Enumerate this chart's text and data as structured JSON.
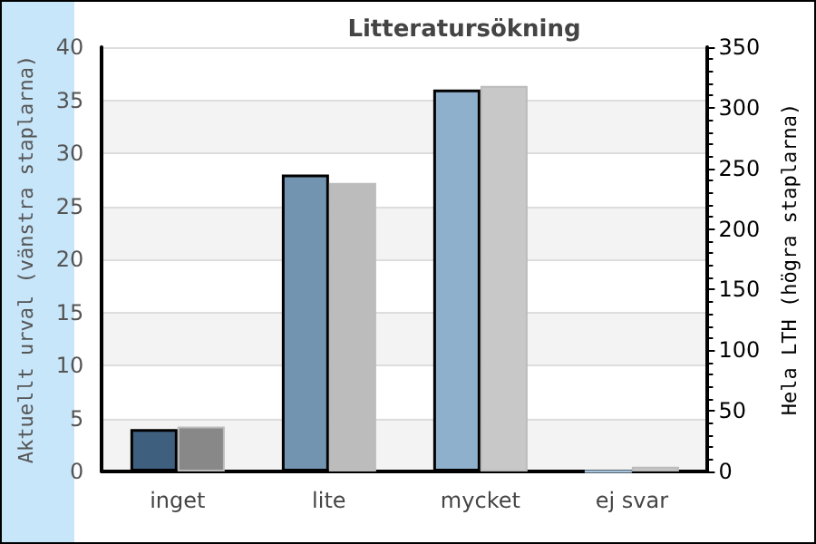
{
  "chart_data": {
    "type": "bar",
    "title": "Litteratursökning",
    "categories": [
      "inget",
      "lite",
      "mycket",
      "ej svar"
    ],
    "ylabel": "Aktuellt urval (vänstra staplarna)",
    "y2label": "Hela LTH (högra staplarna)",
    "series": [
      {
        "colors": [
          "#3f5f7f",
          "#7394b0",
          "#8fb0cc",
          "#a8c4dc"
        ],
        "values": [
          4,
          28,
          36,
          0
        ]
      },
      {
        "colors": [
          "#888888",
          "#bcbcbc",
          "#c8c8c8",
          "#c8c8c8"
        ],
        "values": [
          37,
          238,
          318,
          4
        ],
        "axis": "y2"
      }
    ],
    "ylim": [
      0,
      40
    ],
    "yticks": [
      0,
      5,
      10,
      15,
      20,
      25,
      30,
      35,
      40
    ],
    "y2lim": [
      0,
      350
    ],
    "y2ticks": [
      0,
      50,
      100,
      150,
      200,
      250,
      300,
      350
    ],
    "grid": "y"
  }
}
